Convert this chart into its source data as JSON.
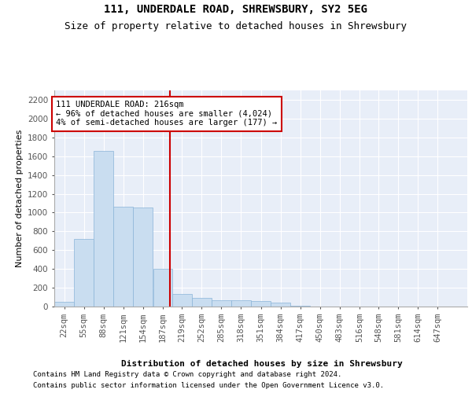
{
  "title_line1": "111, UNDERDALE ROAD, SHREWSBURY, SY2 5EG",
  "title_line2": "Size of property relative to detached houses in Shrewsbury",
  "xlabel": "Distribution of detached houses by size in Shrewsbury",
  "ylabel": "Number of detached properties",
  "annotation_line1": "111 UNDERDALE ROAD: 216sqm",
  "annotation_line2": "← 96% of detached houses are smaller (4,024)",
  "annotation_line3": "4% of semi-detached houses are larger (177) →",
  "property_size": 216,
  "footnote1": "Contains HM Land Registry data © Crown copyright and database right 2024.",
  "footnote2": "Contains public sector information licensed under the Open Government Licence v3.0.",
  "bar_color": "#c9ddf0",
  "bar_edge_color": "#8ab4d8",
  "highlight_line_color": "#cc0000",
  "background_color": "#e8eef8",
  "bin_starts": [
    22,
    55,
    88,
    121,
    154,
    187,
    219,
    252,
    285,
    318,
    351,
    384,
    417,
    450,
    483,
    516,
    548,
    581,
    614,
    647
  ],
  "bin_width": 33,
  "bar_heights": [
    50,
    720,
    1660,
    1060,
    1050,
    400,
    130,
    90,
    70,
    65,
    60,
    40,
    5,
    0,
    0,
    0,
    0,
    0,
    0,
    0
  ],
  "ylim": [
    0,
    2300
  ],
  "yticks": [
    0,
    200,
    400,
    600,
    800,
    1000,
    1200,
    1400,
    1600,
    1800,
    2000,
    2200
  ],
  "title_fontsize": 10,
  "subtitle_fontsize": 9,
  "axis_label_fontsize": 8,
  "tick_fontsize": 7.5,
  "annotation_fontsize": 7.5,
  "footnote_fontsize": 6.5
}
